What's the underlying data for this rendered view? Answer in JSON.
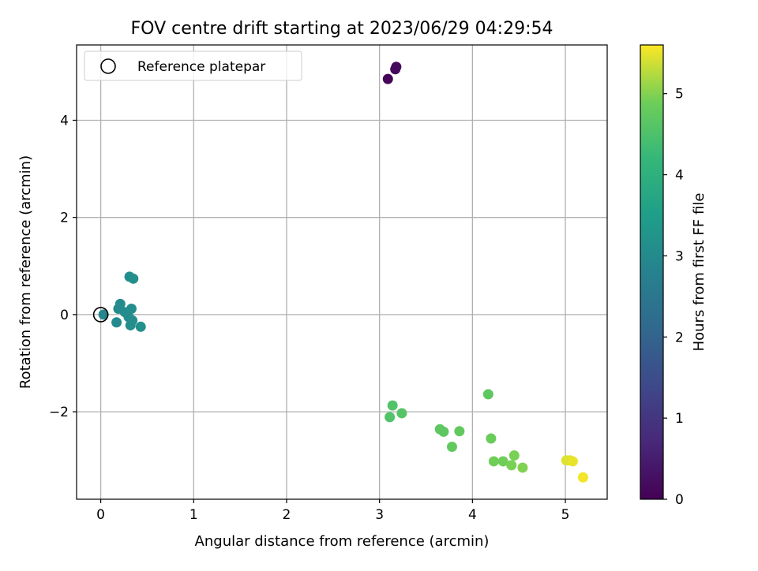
{
  "chart_data": {
    "type": "scatter",
    "title": "FOV centre drift starting at 2023/06/29 04:29:54",
    "xlabel": "Angular distance from reference (arcmin)",
    "ylabel": "Rotation from reference (arcmin)",
    "xlim": [
      -0.26,
      5.45
    ],
    "ylim": [
      -3.8,
      5.55
    ],
    "xticks": [
      0,
      1,
      2,
      3,
      4,
      5
    ],
    "yticks": [
      -2,
      0,
      2,
      4
    ],
    "xtick_labels": [
      "0",
      "1",
      "2",
      "3",
      "4",
      "5"
    ],
    "ytick_labels": [
      "−2",
      "0",
      "2",
      "4"
    ],
    "grid": true,
    "legend": {
      "label": "Reference platepar",
      "placement": "top-left"
    },
    "reference_point": {
      "x": 0.0,
      "y": 0.0
    },
    "colorbar": {
      "label": "Hours from first FF file",
      "range": [
        0,
        5.6
      ],
      "ticks": [
        0,
        1,
        2,
        3,
        4,
        5
      ],
      "tick_labels": [
        "0",
        "1",
        "2",
        "3",
        "4",
        "5"
      ],
      "colormap": "viridis"
    },
    "points": [
      {
        "x": 3.09,
        "y": 4.85,
        "c": 0.05
      },
      {
        "x": 3.17,
        "y": 5.05,
        "c": 0.1
      },
      {
        "x": 3.18,
        "y": 5.1,
        "c": 0.15
      },
      {
        "x": 0.03,
        "y": 0.0,
        "c": 2.9
      },
      {
        "x": 0.17,
        "y": -0.16,
        "c": 3.0
      },
      {
        "x": 0.19,
        "y": 0.12,
        "c": 3.0
      },
      {
        "x": 0.21,
        "y": 0.22,
        "c": 3.05
      },
      {
        "x": 0.26,
        "y": 0.05,
        "c": 3.05
      },
      {
        "x": 0.3,
        "y": -0.05,
        "c": 3.05
      },
      {
        "x": 0.31,
        "y": 0.78,
        "c": 3.1
      },
      {
        "x": 0.32,
        "y": -0.22,
        "c": 3.1
      },
      {
        "x": 0.33,
        "y": 0.12,
        "c": 3.1
      },
      {
        "x": 0.34,
        "y": -0.12,
        "c": 3.1
      },
      {
        "x": 0.35,
        "y": 0.74,
        "c": 3.15
      },
      {
        "x": 0.43,
        "y": -0.25,
        "c": 3.15
      },
      {
        "x": 3.11,
        "y": -2.11,
        "c": 4.55
      },
      {
        "x": 3.14,
        "y": -1.87,
        "c": 4.55
      },
      {
        "x": 3.24,
        "y": -2.03,
        "c": 4.6
      },
      {
        "x": 3.65,
        "y": -2.36,
        "c": 4.7
      },
      {
        "x": 3.69,
        "y": -2.41,
        "c": 4.7
      },
      {
        "x": 3.78,
        "y": -2.72,
        "c": 4.75
      },
      {
        "x": 3.86,
        "y": -2.4,
        "c": 4.75
      },
      {
        "x": 4.17,
        "y": -1.64,
        "c": 4.7
      },
      {
        "x": 4.2,
        "y": -2.55,
        "c": 4.85
      },
      {
        "x": 4.23,
        "y": -3.02,
        "c": 4.9
      },
      {
        "x": 4.33,
        "y": -3.02,
        "c": 4.9
      },
      {
        "x": 4.42,
        "y": -3.1,
        "c": 4.95
      },
      {
        "x": 4.45,
        "y": -2.9,
        "c": 4.95
      },
      {
        "x": 4.54,
        "y": -3.15,
        "c": 5.0
      },
      {
        "x": 5.01,
        "y": -3.0,
        "c": 5.45
      },
      {
        "x": 5.05,
        "y": -3.0,
        "c": 5.45
      },
      {
        "x": 5.08,
        "y": -3.02,
        "c": 5.5
      },
      {
        "x": 5.19,
        "y": -3.35,
        "c": 5.55
      }
    ]
  }
}
